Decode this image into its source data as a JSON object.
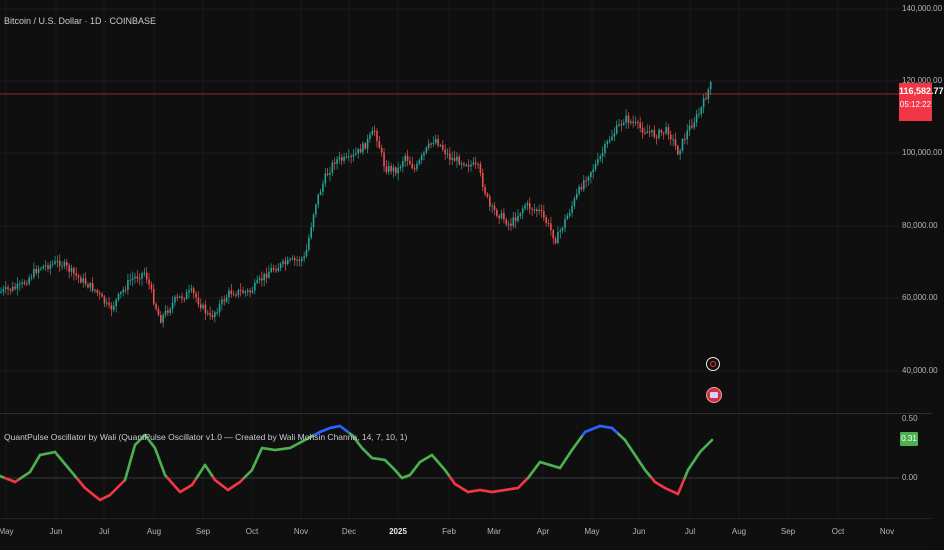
{
  "chart": {
    "title": "Bitcoin / U.S. Dollar · 1D · COINBASE",
    "price_axis": [
      "140,000.00",
      "120,000.00",
      "100,000.00",
      "80,000.00",
      "60,000.00",
      "40,000.00"
    ],
    "last_price": "116,582.77",
    "countdown": "05:12:22",
    "colors": {
      "up": "#26a69a",
      "down": "#ef5350",
      "price_line": "#f23645"
    }
  },
  "oscillator": {
    "title": "QuantPulse Oscillator by Wali (QuantPulse Oscillator v1.0 — Created by Wali Mohsin Channa, 14, 7, 10, 1)",
    "axis": [
      "0.50",
      "0.00"
    ],
    "last_value": "0.31",
    "colors": {
      "bull": "#4caf50",
      "bear": "#f23645",
      "extreme": "#2962ff",
      "extreme_low": "#ffffff"
    }
  },
  "time_axis": [
    "May",
    "Jun",
    "Jul",
    "Aug",
    "Sep",
    "Oct",
    "Nov",
    "Dec",
    "2025",
    "Feb",
    "Mar",
    "Apr",
    "May",
    "Jun",
    "Jul",
    "Aug",
    "Sep",
    "Oct",
    "Nov"
  ],
  "time_axis_bold": "2025",
  "markers": [
    {
      "name": "earnings-marker",
      "icon": "circle-marker-icon"
    },
    {
      "name": "news-marker",
      "icon": "flag-icon"
    }
  ]
}
